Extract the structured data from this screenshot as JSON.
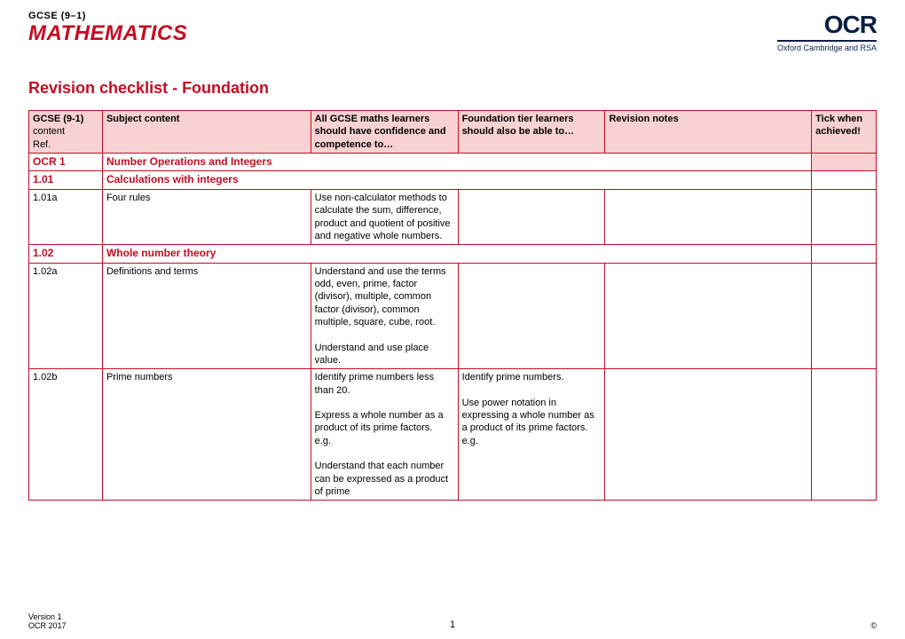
{
  "brand": {
    "gcse_top": "GCSE (9–1)",
    "gcse_main": "MATHEMATICS",
    "ocr": "OCR",
    "ocr_sub": "Oxford Cambridge and RSA"
  },
  "title": "Revision checklist - Foundation",
  "header": {
    "ref_top": "GCSE (9-1)",
    "ref_mid": "content",
    "ref_bot": "Ref.",
    "subject": "Subject content",
    "confidence": "All GCSE maths learners should have confidence and competence to…",
    "foundation": "Foundation tier learners should also be able to…",
    "notes": "Revision notes",
    "tick": "Tick when achieved!"
  },
  "sections": {
    "ocr1_ref": "OCR 1",
    "ocr1_title": "Number Operations and Integers",
    "s101_ref": "1.01",
    "s101_title": "Calculations with integers",
    "r101a_ref": "1.01a",
    "r101a_subject": "Four rules",
    "r101a_conf": "Use non-calculator methods to calculate the sum, difference, product and quotient of positive and negative whole numbers.",
    "s102_ref": "1.02",
    "s102_title": "Whole number theory",
    "r102a_ref": "1.02a",
    "r102a_subject": "Definitions and terms",
    "r102a_conf": "Understand and use the terms odd, even, prime, factor (divisor), multiple, common factor (divisor), common multiple, square, cube, root.\n\nUnderstand and use place value.",
    "r102b_ref": "1.02b",
    "r102b_subject": "Prime numbers",
    "r102b_conf": "Identify prime numbers less than 20.\n\nExpress a whole number as a product of its prime factors.\ne.g.\n\nUnderstand that each number can be expressed as a product of prime",
    "r102b_found": "Identify prime numbers.\n\nUse power notation in expressing a whole number as a product of its prime factors.\ne.g."
  },
  "footer": {
    "version": "Version 1",
    "copyright_org": "OCR 2017",
    "page": "1",
    "copy": "©"
  },
  "colors": {
    "brand_red": "#c30d23",
    "header_bg": "#f8d2d2",
    "ocr_navy": "#0a1f44"
  }
}
